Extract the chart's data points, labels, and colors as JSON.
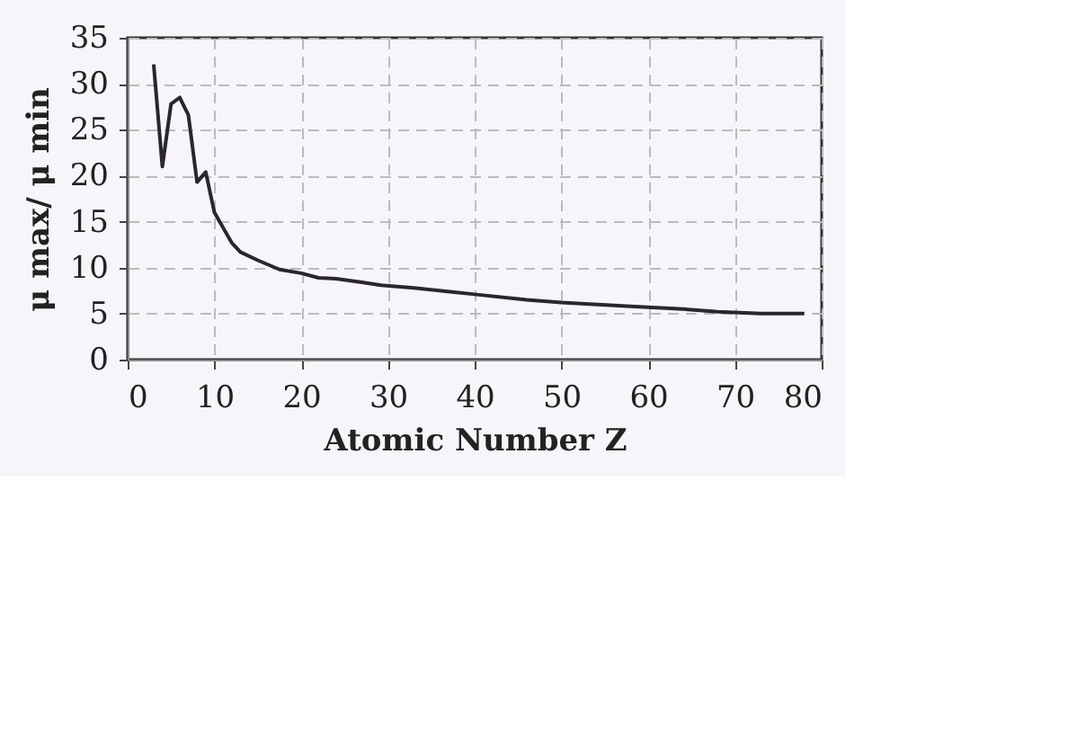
{
  "chart_data": {
    "type": "line",
    "xlabel": "Atomic Number Z",
    "ylabel": "μ max/ μ min",
    "x": [
      3,
      4,
      5,
      6,
      7,
      8,
      9,
      10,
      12,
      13,
      15,
      17.5,
      20,
      22,
      24,
      27,
      29.2,
      33,
      40,
      46,
      50,
      58,
      64,
      68,
      73,
      78
    ],
    "series": [
      {
        "color": "#2a2530",
        "values": [
          32.1,
          21,
          27.8,
          28.5,
          26.6,
          19.3,
          20.4,
          16,
          12.7,
          11.7,
          10.8,
          9.8,
          9.4,
          8.9,
          8.8,
          8.4,
          8.1,
          7.8,
          7.1,
          6.5,
          6.2,
          5.8,
          5.5,
          5.2,
          5.0,
          5.0
        ]
      }
    ],
    "xlim": [
      0,
      80
    ],
    "xticks": [
      0,
      10,
      20,
      30,
      40,
      50,
      60,
      70,
      80
    ],
    "ylim": [
      0,
      35
    ],
    "yticks": [
      0,
      5,
      10,
      15,
      20,
      25,
      30,
      35
    ],
    "grid": true,
    "line_style": "solid",
    "marker": "none"
  }
}
